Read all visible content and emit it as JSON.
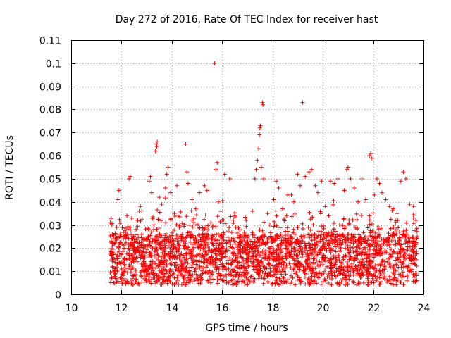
{
  "chart_data": {
    "type": "scatter",
    "title": "Day 272 of 2016, Rate Of TEC Index for receiver hast",
    "xlabel": "GPS time / hours",
    "ylabel": "ROTI / TECUs",
    "xlim": [
      10,
      24
    ],
    "ylim": [
      0,
      0.11
    ],
    "xticks": [
      "10",
      "12",
      "14",
      "16",
      "18",
      "20",
      "22",
      "24"
    ],
    "yticks": [
      "0",
      "0.01",
      "0.02",
      "0.03",
      "0.04",
      "0.05",
      "0.06",
      "0.07",
      "0.08",
      "0.09",
      "0.1",
      "0.11"
    ],
    "grid": true,
    "marker": "plus",
    "series_color": "#ff0000",
    "series": [
      {
        "name": "ROTI",
        "points": [
          [
            11.55,
            0.031
          ],
          [
            11.6,
            0.018
          ],
          [
            11.65,
            0.012
          ],
          [
            11.7,
            0.022
          ],
          [
            11.75,
            0.009
          ],
          [
            11.85,
            0.041
          ],
          [
            11.9,
            0.045
          ],
          [
            11.95,
            0.026
          ],
          [
            12.05,
            0.014
          ],
          [
            12.1,
            0.02
          ],
          [
            12.25,
            0.029
          ],
          [
            12.3,
            0.05
          ],
          [
            12.35,
            0.051
          ],
          [
            12.45,
            0.024
          ],
          [
            12.55,
            0.018
          ],
          [
            12.7,
            0.036
          ],
          [
            12.75,
            0.038
          ],
          [
            12.85,
            0.012
          ],
          [
            13.1,
            0.049
          ],
          [
            13.15,
            0.051
          ],
          [
            13.2,
            0.044
          ],
          [
            13.35,
            0.062
          ],
          [
            13.38,
            0.065
          ],
          [
            13.4,
            0.064
          ],
          [
            13.42,
            0.066
          ],
          [
            13.5,
            0.042
          ],
          [
            13.6,
            0.039
          ],
          [
            13.75,
            0.046
          ],
          [
            13.8,
            0.052
          ],
          [
            13.85,
            0.055
          ],
          [
            13.95,
            0.044
          ],
          [
            14.1,
            0.035
          ],
          [
            14.2,
            0.047
          ],
          [
            14.3,
            0.029
          ],
          [
            14.55,
            0.065
          ],
          [
            14.6,
            0.053
          ],
          [
            14.65,
            0.048
          ],
          [
            14.8,
            0.041
          ],
          [
            14.95,
            0.037
          ],
          [
            15.1,
            0.044
          ],
          [
            15.3,
            0.047
          ],
          [
            15.4,
            0.045
          ],
          [
            15.55,
            0.031
          ],
          [
            15.7,
            0.1
          ],
          [
            15.75,
            0.054
          ],
          [
            15.8,
            0.057
          ],
          [
            15.85,
            0.04
          ],
          [
            15.95,
            0.036
          ],
          [
            16.1,
            0.052
          ],
          [
            16.3,
            0.05
          ],
          [
            16.5,
            0.034
          ],
          [
            16.7,
            0.028
          ],
          [
            16.95,
            0.032
          ],
          [
            17.2,
            0.036
          ],
          [
            17.3,
            0.05
          ],
          [
            17.35,
            0.054
          ],
          [
            17.4,
            0.058
          ],
          [
            17.45,
            0.063
          ],
          [
            17.48,
            0.069
          ],
          [
            17.5,
            0.072
          ],
          [
            17.52,
            0.073
          ],
          [
            17.55,
            0.055
          ],
          [
            17.6,
            0.083
          ],
          [
            17.62,
            0.082
          ],
          [
            17.65,
            0.05
          ],
          [
            17.8,
            0.035
          ],
          [
            18.05,
            0.041
          ],
          [
            18.15,
            0.049
          ],
          [
            18.25,
            0.046
          ],
          [
            18.4,
            0.037
          ],
          [
            18.6,
            0.043
          ],
          [
            18.75,
            0.043
          ],
          [
            18.85,
            0.04
          ],
          [
            19.0,
            0.052
          ],
          [
            19.1,
            0.047
          ],
          [
            19.2,
            0.083
          ],
          [
            19.3,
            0.051
          ],
          [
            19.45,
            0.053
          ],
          [
            19.55,
            0.054
          ],
          [
            19.7,
            0.047
          ],
          [
            19.8,
            0.044
          ],
          [
            19.95,
            0.049
          ],
          [
            20.1,
            0.038
          ],
          [
            20.3,
            0.049
          ],
          [
            20.45,
            0.048
          ],
          [
            20.6,
            0.05
          ],
          [
            20.85,
            0.045
          ],
          [
            20.95,
            0.054
          ],
          [
            21.0,
            0.055
          ],
          [
            21.1,
            0.05
          ],
          [
            21.25,
            0.046
          ],
          [
            21.4,
            0.04
          ],
          [
            21.55,
            0.05
          ],
          [
            21.7,
            0.041
          ],
          [
            21.85,
            0.06
          ],
          [
            21.9,
            0.061
          ],
          [
            21.95,
            0.059
          ],
          [
            22.05,
            0.043
          ],
          [
            22.15,
            0.05
          ],
          [
            22.25,
            0.048
          ],
          [
            22.35,
            0.044
          ],
          [
            22.5,
            0.041
          ],
          [
            22.65,
            0.038
          ],
          [
            22.8,
            0.037
          ],
          [
            22.95,
            0.035
          ],
          [
            23.1,
            0.049
          ],
          [
            23.2,
            0.053
          ],
          [
            23.3,
            0.05
          ],
          [
            23.45,
            0.039
          ],
          [
            23.6,
            0.038
          ],
          [
            23.75,
            0.025
          ]
        ]
      }
    ]
  }
}
